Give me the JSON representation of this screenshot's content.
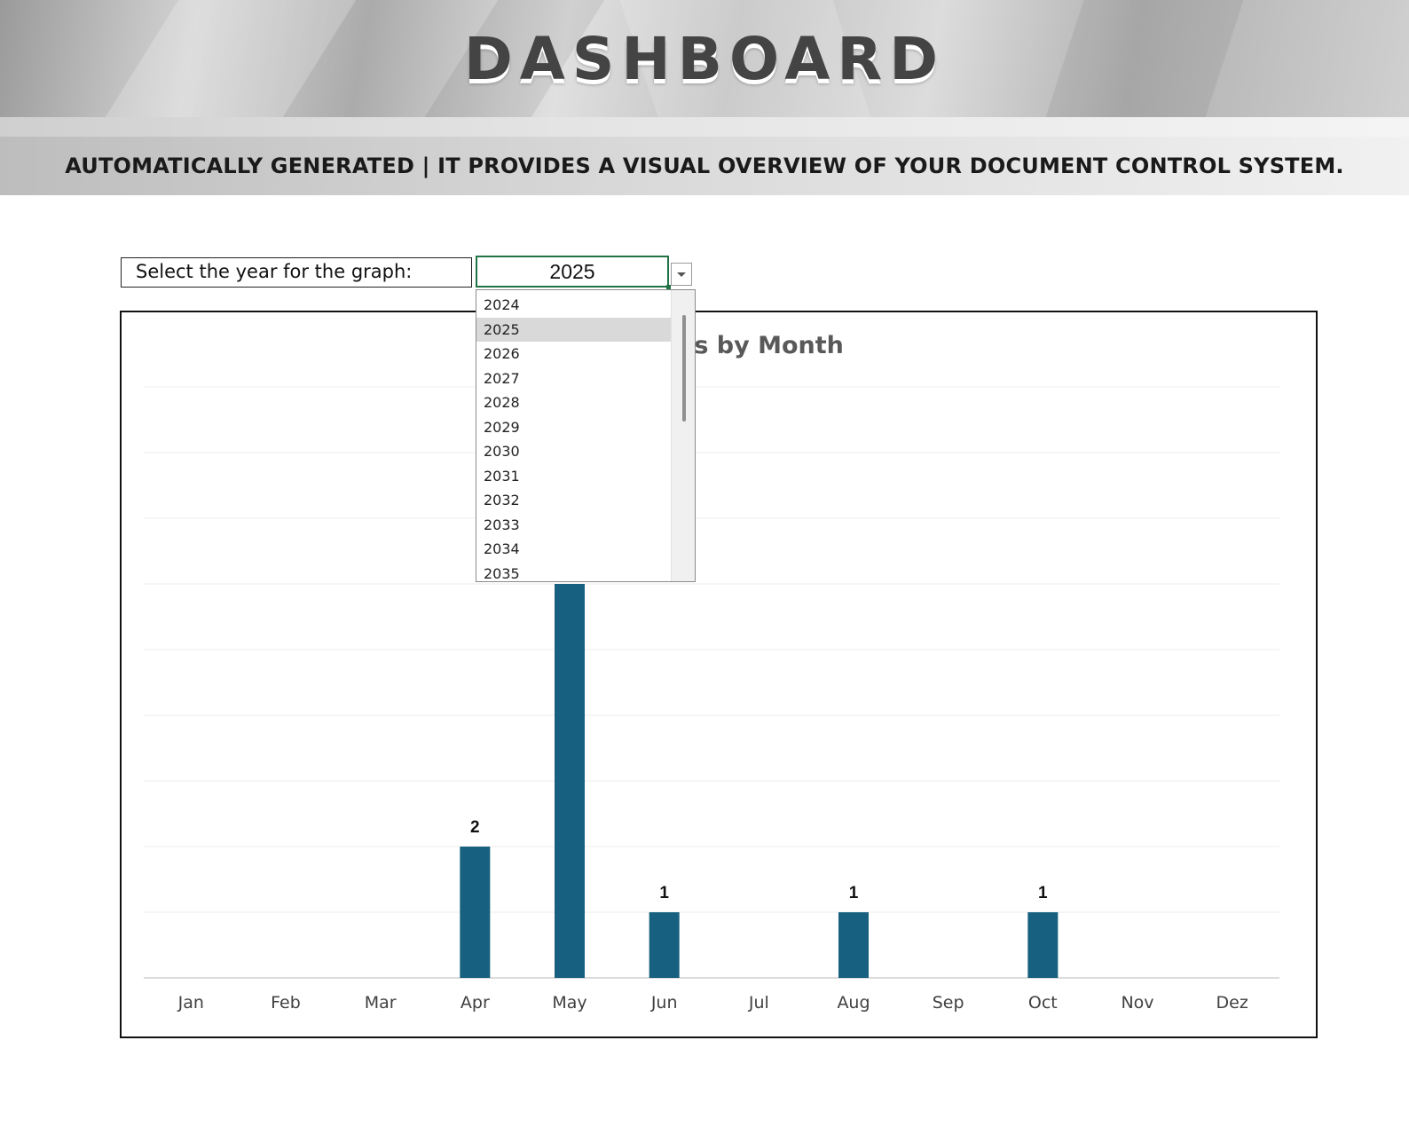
{
  "header": {
    "title": "DASHBOARD",
    "subtitle": "AUTOMATICALLY GENERATED  |  IT PROVIDES A VISUAL OVERVIEW OF YOUR DOCUMENT CONTROL SYSTEM."
  },
  "year_selector": {
    "label": "Select the year for the graph:",
    "selected": "2025",
    "options": [
      "2024",
      "2025",
      "2026",
      "2027",
      "2028",
      "2029",
      "2030",
      "2031",
      "2032",
      "2033",
      "2034",
      "2035"
    ]
  },
  "chart_data": {
    "type": "bar",
    "title": "Reviews by Month",
    "categories": [
      "Jan",
      "Feb",
      "Mar",
      "Apr",
      "May",
      "Jun",
      "Jul",
      "Aug",
      "Sep",
      "Oct",
      "Nov",
      "Dez"
    ],
    "values": [
      0,
      0,
      0,
      2,
      6,
      1,
      0,
      1,
      0,
      1,
      0,
      0
    ],
    "data_labels": [
      "",
      "",
      "",
      "2",
      "",
      "1",
      "",
      "1",
      "",
      "1",
      "",
      ""
    ],
    "ylim": [
      0,
      9
    ],
    "grid": true,
    "bar_color": "#17607f"
  }
}
